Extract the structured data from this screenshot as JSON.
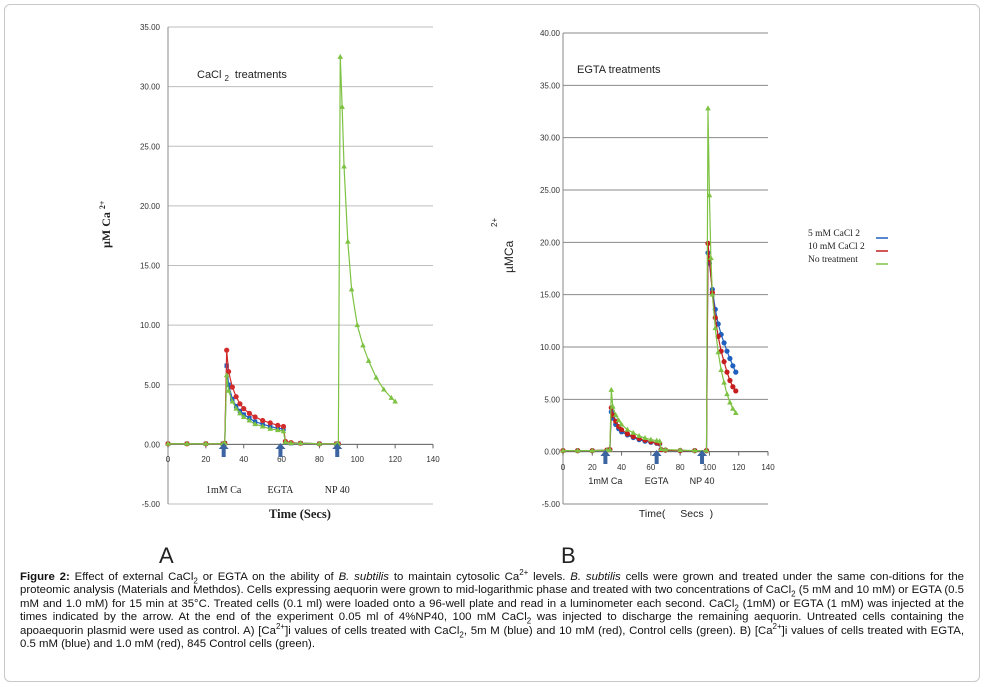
{
  "panels": {
    "a": {
      "letter": "A"
    },
    "b": {
      "letter": "B"
    }
  },
  "chart_data": [
    {
      "type": "scatter",
      "panel": "A",
      "title": "CaCl 2 treatments",
      "xlabel": "Time (Secs)",
      "ylabel": "µM Ca 2+",
      "xlim": [
        0,
        140
      ],
      "ylim": [
        -5,
        35
      ],
      "x_ticks": [
        "0",
        "20",
        "40",
        "60",
        "80",
        "100",
        "120",
        "140"
      ],
      "y_ticks": [
        "-5.00",
        "0.00",
        "5.00",
        "10.00",
        "15.00",
        "20.00",
        "25.00",
        "30.00",
        "35.00"
      ],
      "grid": "horizontal",
      "annotations": [
        {
          "text": "1mM Ca",
          "x": 31
        },
        {
          "text": "EGTA",
          "x": 61
        },
        {
          "text": "NP 40",
          "x": 91
        }
      ],
      "series": [
        {
          "color": "#1f5fbf",
          "x": [
            0,
            10,
            20,
            29,
            30,
            31,
            32,
            34,
            36,
            38,
            40,
            43,
            46,
            50,
            54,
            58,
            61,
            62,
            65,
            70,
            80,
            89,
            90
          ],
          "values": [
            0.05,
            0.05,
            0.05,
            0.05,
            0.1,
            6.6,
            5.0,
            3.8,
            3.2,
            2.8,
            2.5,
            2.2,
            1.9,
            1.7,
            1.5,
            1.35,
            1.3,
            0.2,
            0.1,
            0.1,
            0.05,
            0.05,
            0.05
          ]
        },
        {
          "color": "#d22b2b",
          "x": [
            0,
            10,
            20,
            29,
            30,
            31,
            32,
            34,
            36,
            38,
            40,
            43,
            46,
            50,
            54,
            58,
            61,
            62,
            65,
            70,
            80,
            89,
            90
          ],
          "values": [
            0.05,
            0.05,
            0.05,
            0.05,
            0.1,
            7.9,
            6.1,
            4.8,
            4.0,
            3.4,
            3.0,
            2.6,
            2.3,
            2.0,
            1.8,
            1.6,
            1.5,
            0.25,
            0.15,
            0.1,
            0.05,
            0.05,
            0.05
          ]
        },
        {
          "color": "#7dc242",
          "x": [
            0,
            10,
            20,
            29,
            30,
            31,
            32,
            34,
            36,
            38,
            40,
            43,
            46,
            50,
            54,
            58,
            61,
            62,
            65,
            70,
            80,
            89,
            90,
            91,
            92,
            93,
            95,
            97,
            100,
            103,
            106,
            110,
            114,
            118,
            120
          ],
          "values": [
            0.05,
            0.05,
            0.05,
            0.05,
            0.1,
            5.8,
            4.5,
            3.6,
            3.0,
            2.6,
            2.3,
            2.0,
            1.7,
            1.5,
            1.3,
            1.2,
            1.1,
            0.2,
            0.1,
            0.1,
            0.05,
            0.05,
            0.05,
            32.5,
            28.3,
            23.3,
            17.0,
            13.0,
            10.0,
            8.3,
            7.0,
            5.6,
            4.6,
            3.9,
            3.6
          ]
        }
      ]
    },
    {
      "type": "scatter",
      "panel": "B",
      "title": "EGTA treatments",
      "xlabel": "Time( Secs )",
      "ylabel": "µMCa 2+",
      "xlim": [
        0,
        140
      ],
      "ylim": [
        -5,
        40
      ],
      "x_ticks": [
        "0",
        "20",
        "40",
        "60",
        "80",
        "100",
        "120",
        "140"
      ],
      "y_ticks": [
        "-5.00",
        "0.00",
        "5.00",
        "10.00",
        "15.00",
        "20.00",
        "25.00",
        "30.00",
        "35.00",
        "40.00"
      ],
      "grid": "horizontal",
      "legend_position": "right",
      "annotations": [
        {
          "text": "1mM Ca",
          "x": 31
        },
        {
          "text": "EGTA",
          "x": 66
        },
        {
          "text": "NP 40",
          "x": 97
        }
      ],
      "series": [
        {
          "name": "5 mM CaCl 2",
          "color": "#1f5fbf",
          "x": [
            0,
            10,
            20,
            30,
            32,
            33,
            34,
            36,
            38,
            40,
            44,
            48,
            52,
            56,
            60,
            64,
            66,
            67,
            70,
            80,
            90,
            98,
            99,
            100,
            102,
            104,
            106,
            108,
            110,
            112,
            114,
            116,
            118
          ],
          "values": [
            0.1,
            0.1,
            0.1,
            0.15,
            0.2,
            3.8,
            3.2,
            2.6,
            2.2,
            1.9,
            1.6,
            1.35,
            1.15,
            1.0,
            0.9,
            0.8,
            0.75,
            0.2,
            0.15,
            0.1,
            0.1,
            0.1,
            19.0,
            18.0,
            15.5,
            13.6,
            12.2,
            11.2,
            10.4,
            9.6,
            8.9,
            8.2,
            7.6
          ]
        },
        {
          "name": "10 mM CaCl 2",
          "color": "#c41e1e",
          "x": [
            0,
            10,
            20,
            30,
            32,
            33,
            34,
            36,
            38,
            40,
            44,
            48,
            52,
            56,
            60,
            64,
            66,
            67,
            70,
            80,
            90,
            98,
            99,
            100,
            102,
            104,
            106,
            108,
            110,
            112,
            114,
            116,
            118
          ],
          "values": [
            0.1,
            0.1,
            0.1,
            0.15,
            0.2,
            4.2,
            3.5,
            2.9,
            2.4,
            2.1,
            1.7,
            1.45,
            1.25,
            1.1,
            0.95,
            0.85,
            0.8,
            0.2,
            0.15,
            0.1,
            0.1,
            0.1,
            19.9,
            18.4,
            15.2,
            12.8,
            11.0,
            9.6,
            8.6,
            7.6,
            6.8,
            6.2,
            5.8
          ]
        },
        {
          "name": "No treatment",
          "color": "#7dc242",
          "x": [
            0,
            10,
            20,
            30,
            32,
            33,
            34,
            36,
            38,
            40,
            44,
            48,
            52,
            56,
            60,
            64,
            66,
            67,
            70,
            80,
            90,
            98,
            99,
            100,
            101,
            102,
            104,
            106,
            108,
            110,
            112,
            114,
            116,
            118
          ],
          "values": [
            0.1,
            0.1,
            0.1,
            0.15,
            0.2,
            5.9,
            4.3,
            3.5,
            3.0,
            2.6,
            2.1,
            1.8,
            1.5,
            1.3,
            1.15,
            1.05,
            1.0,
            0.25,
            0.2,
            0.15,
            0.1,
            0.1,
            32.8,
            24.5,
            18.5,
            15.0,
            11.8,
            9.5,
            7.8,
            6.6,
            5.5,
            4.7,
            4.1,
            3.7
          ]
        }
      ]
    }
  ],
  "caption": {
    "figure_label": "Figure 2:",
    "line1": "Effect of external CaCl2 or EGTA on the ability of B. subtilis to maintain cytosolic Ca2+ levels. B. subtilis cells were grown and treated under the same con-",
    "line2": "ditions for the proteomic analysis (Materials and Methdos). Cells expressing aequorin were grown to mid-logarithmic phase and treated with two concentrations of",
    "line3": "CaCl2 (5 mM and 10 mM) or EGTA (0.5 mM and 1.0 mM) for 15 min at 35°C. Treated cells (0.1 ml) were loaded onto a 96-well plate and read in a luminometer each",
    "line4": "second. CaCl2 (1mM) or EGTA (1 mM) was injected at the times indicated by the arrow. At the end of the experiment 0.05 ml of 4%NP40, 100 mM CaCl2 was injected",
    "line5": "to discharge the remaining aequorin. Untreated cells containing the apoaequorin plasmid were used as control. A) [Ca2+]i values of cells treated with CaCl2, 5m M (blue)",
    "line6": "and 10 mM (red), Control cells (green). B) [Ca2+]i values of cells treated with EGTA, 0.5 mM (blue) and 1.0 mM (red), 845 Control cells (green)."
  }
}
